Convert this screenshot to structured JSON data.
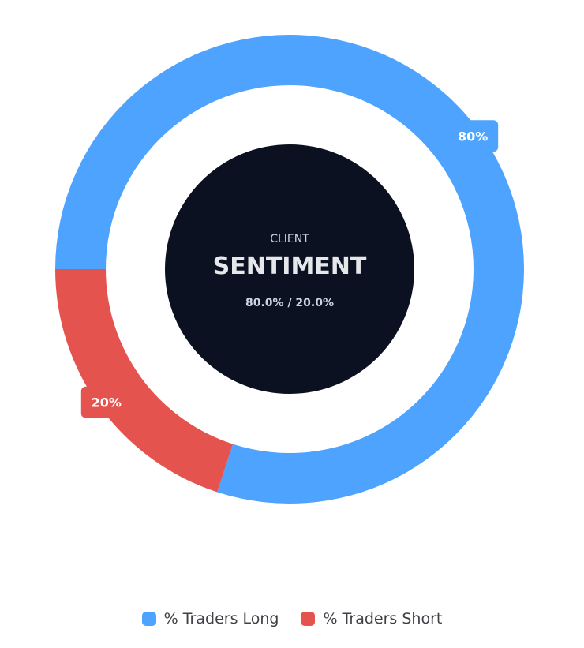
{
  "chart_data": {
    "type": "pie",
    "variant": "doughnut",
    "categories": [
      "% Traders Long",
      "% Traders Short"
    ],
    "values": [
      80,
      20
    ],
    "colors": [
      "#4da3fd",
      "#e5534f"
    ],
    "slice_labels": [
      "80%",
      "20%"
    ],
    "legend_position": "bottom"
  },
  "center": {
    "subtitle": "CLIENT",
    "title": "SENTIMENT",
    "values_text": "80.0% / 20.0%",
    "background": "#0b1120"
  },
  "legend": {
    "items": [
      {
        "label": "% Traders Long",
        "color": "#4da3fd"
      },
      {
        "label": "% Traders Short",
        "color": "#e5534f"
      }
    ]
  }
}
